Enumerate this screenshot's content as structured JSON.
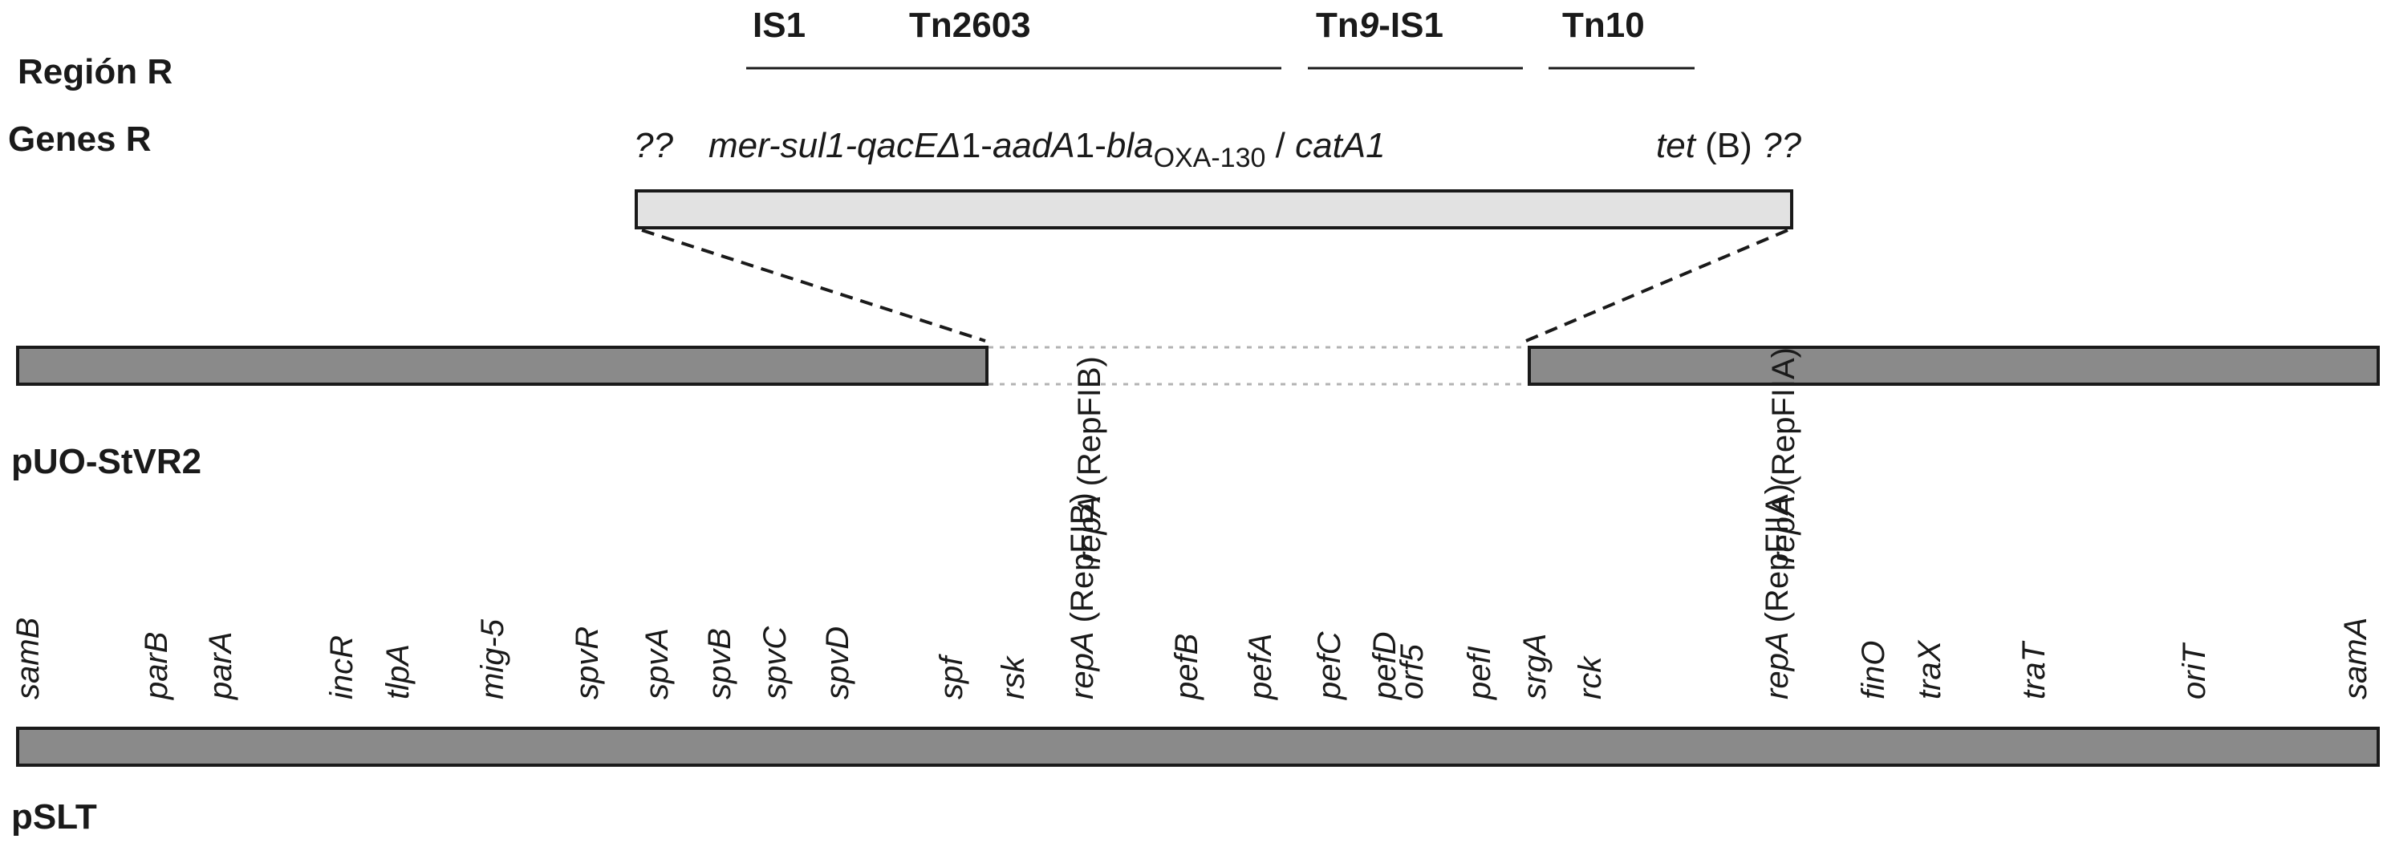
{
  "colors": {
    "plasmid_fill": "#8a8a8a",
    "r_region_fill": "#e2e2e2",
    "stroke": "#1a1a1a",
    "gap_stroke": "#b3b3b3"
  },
  "labels": {
    "region_r": "Región R",
    "genes_r": "Genes R",
    "plasmid_1": "pUO-StVR2",
    "plasmid_2": "pSLT"
  },
  "elements": {
    "is1": "IS1",
    "tn2603": "Tn2603",
    "tn9_is1": {
      "prefix": "Tn",
      "number": "9",
      "suffix": "-IS1"
    },
    "tn10": "Tn10"
  },
  "genes_r_line": {
    "unknown_left": "??",
    "mer": "mer-sul1-qacE",
    "delta": "Δ",
    "one_a": "1-",
    "aada": "aadA",
    "one_b": "1-",
    "bla": "bla",
    "oxa": "OXA-130",
    "slash": " / ",
    "cata1": "catA1",
    "tet": "tet",
    "tet_b": " (B)",
    "unknown_right": "??"
  },
  "puo_markers": [
    {
      "gene": "repA",
      "note": " (RepFIB)"
    },
    {
      "gene": "repA",
      "note": " (RepFIIA)"
    }
  ],
  "pslt_genes": [
    {
      "name": "samB"
    },
    {
      "name": "parB"
    },
    {
      "name": "parA"
    },
    {
      "name": "incR"
    },
    {
      "name": "tlpA"
    },
    {
      "name": "mig-5"
    },
    {
      "name": "spvR"
    },
    {
      "name": "spvA"
    },
    {
      "name": "spvB"
    },
    {
      "name": "spvC"
    },
    {
      "name": "spvD"
    },
    {
      "name": "spf"
    },
    {
      "name": "rsk"
    },
    {
      "name": "repA",
      "note": " (RepFIB)"
    },
    {
      "name": "pefB"
    },
    {
      "name": "pefA"
    },
    {
      "name": "pefC"
    },
    {
      "name": "pefD"
    },
    {
      "name": "orf5"
    },
    {
      "name": "pefI"
    },
    {
      "name": "srgA"
    },
    {
      "name": "rck"
    },
    {
      "name": "repA",
      "note": " (RepFIIA)"
    },
    {
      "name": "finO"
    },
    {
      "name": "traX"
    },
    {
      "name": "traT"
    },
    {
      "name": "oriT"
    },
    {
      "name": "samA"
    }
  ]
}
